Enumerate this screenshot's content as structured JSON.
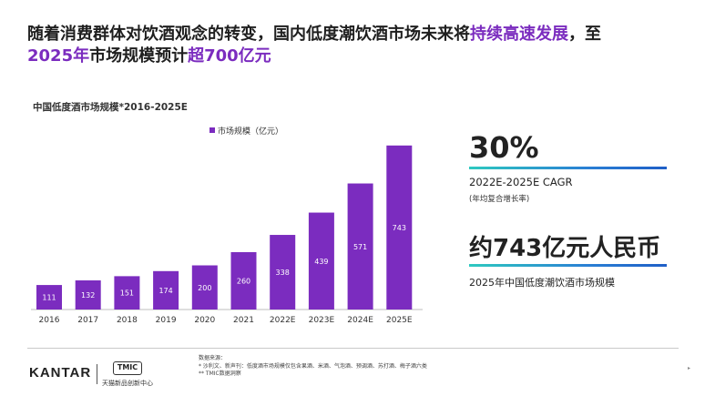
{
  "headline": {
    "line1_a": "随着消费群体对饮酒观念的转变，国内低度潮饮酒市场未来将",
    "line1_highlight": "持续高速发展",
    "line1_b": "，至",
    "line2_highlight_a": "2025年",
    "line2_mid": "市场规模预计",
    "line2_highlight_b": "超700亿元"
  },
  "chart_data": {
    "type": "bar",
    "title": "中国低度酒市场规模*2016-2025E",
    "legend": "市场规模（亿元）",
    "categories": [
      "2016",
      "2017",
      "2018",
      "2019",
      "2020",
      "2021",
      "2022E",
      "2023E",
      "2024E",
      "2025E"
    ],
    "values": [
      111,
      132,
      151,
      174,
      200,
      260,
      338,
      439,
      571,
      743
    ],
    "ylim": [
      0,
      800
    ],
    "color": "#7b2cbf",
    "xlabel": "",
    "ylabel": ""
  },
  "kpi": {
    "cagr_value": "30%",
    "cagr_label": "2022E-2025E CAGR",
    "cagr_sub": "(年均复合增长率)",
    "market_value": "约743亿元人民币",
    "market_label": "2025年中国低度潮饮酒市场规模"
  },
  "footer": {
    "kantar": "KANTAR",
    "tmic": "TMIC",
    "tmic_name": "天猫新品创新中心",
    "source_title": "数据来源：",
    "source_line1": "* 沙利文、新声刊：低度酒市场规模仅包含果酒、米酒、气泡酒、预调酒、苏打酒、梅子酒六类",
    "source_line2": "** TMIC数据洞察"
  },
  "colors": {
    "accent": "#7b2cbf",
    "rule_start": "#2ec9c0",
    "rule_end": "#1f5fc7"
  }
}
